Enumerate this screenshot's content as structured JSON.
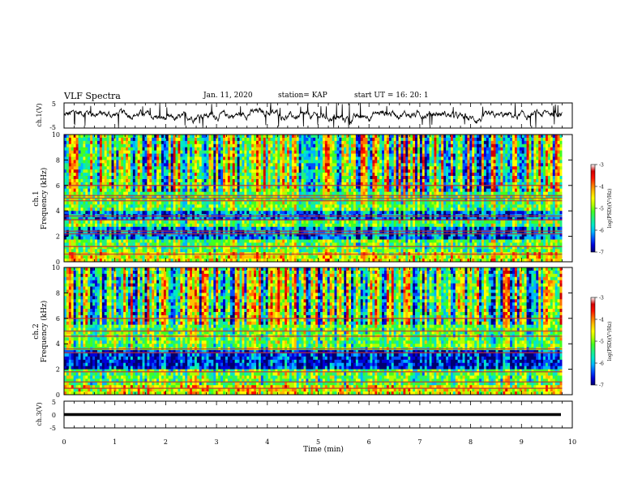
{
  "header": {
    "title": "VLF Spectra",
    "date": "Jan. 11, 2020",
    "station": "station= KAP",
    "start": "start UT = 16: 20: 1"
  },
  "colorbar": {
    "label": "log(PSD)(V²/Hz)",
    "ticks": [
      "-3",
      "-4",
      "-5",
      "-6",
      "-7"
    ],
    "colors": [
      "#000070",
      "#0000d8",
      "#0050ff",
      "#00b4ff",
      "#00e8c8",
      "#20f080",
      "#40ff20",
      "#b0ff00",
      "#ffff00",
      "#ffc000",
      "#ff7000",
      "#ff1000",
      "#d00000",
      "#ffffff"
    ]
  },
  "chart_data": [
    {
      "type": "line",
      "name": "ch1-waveform",
      "ylabel": "ch.1(V)",
      "ylim": [
        -5,
        5
      ],
      "yticks": [
        "5",
        "-5"
      ],
      "xlim": [
        0,
        10
      ],
      "description_values": "noisy voltage trace centred near 0 V, mostly between -3 and +3 V"
    },
    {
      "type": "heatmap",
      "name": "ch1-spectrogram",
      "ylabel": "ch.1 Frequency (kHz)",
      "ylim": [
        0,
        10
      ],
      "yticks": [
        "0",
        "2",
        "4",
        "6",
        "8",
        "10"
      ],
      "xlim": [
        0,
        9.8
      ],
      "zlim": [
        -7,
        -3
      ],
      "bands_khz": [
        0.6,
        1.2,
        2.2,
        2.4,
        3.3,
        3.6,
        4.8,
        5.0,
        5.2,
        6.0
      ],
      "low_power_bands_khz": [
        [
          1.8,
          2.8
        ],
        [
          3.2,
          3.9
        ]
      ]
    },
    {
      "type": "heatmap",
      "name": "ch2-spectrogram",
      "ylabel": "ch.2 Frequency (kHz)",
      "ylim": [
        0,
        10
      ],
      "yticks": [
        "0",
        "2",
        "4",
        "6",
        "8",
        "10"
      ],
      "xlim": [
        0,
        9.8
      ],
      "zlim": [
        -7,
        -3
      ],
      "bands_khz": [
        0.5,
        1.0,
        1.8,
        3.3,
        3.6,
        4.6,
        5.0,
        6.0
      ],
      "low_power_bands_khz": [
        [
          2.0,
          3.2
        ],
        [
          3.3,
          3.6
        ]
      ]
    },
    {
      "type": "line",
      "name": "ch3-waveform",
      "ylabel": "ch.3(V)",
      "ylim": [
        -5,
        5
      ],
      "yticks": [
        "5",
        "0",
        "-5"
      ],
      "xlim": [
        0,
        10
      ],
      "constant_value": 0
    }
  ],
  "xaxis": {
    "label": "Time (min)",
    "ticks": [
      "0",
      "1",
      "2",
      "3",
      "4",
      "5",
      "6",
      "7",
      "8",
      "9",
      "10"
    ],
    "xlim": [
      0,
      10
    ]
  }
}
